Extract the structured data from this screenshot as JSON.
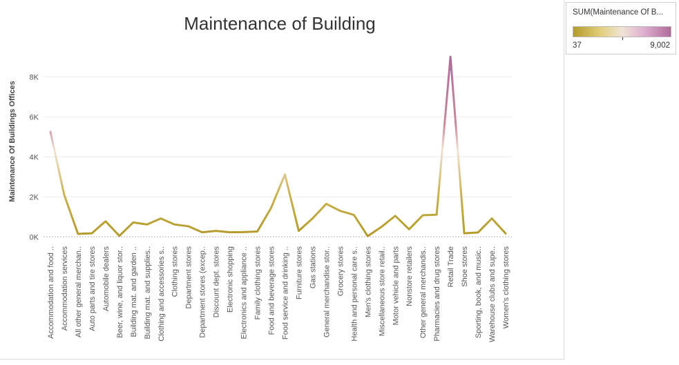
{
  "colors": {
    "low": "#b39a2a",
    "mid": "#f0e4d6",
    "high": "#b06a9b",
    "grid": "#ececec",
    "zero_line": "#b0b0b0",
    "text": "#555555"
  },
  "legend": {
    "title": "SUM(Maintenance Of B...",
    "min_label": "37",
    "max_label": "9,002"
  },
  "chart_data": {
    "type": "line",
    "title": "Maintenance of Building",
    "xlabel": "",
    "ylabel": "Maintenance Of Buildings Offices",
    "ylim": [
      -300,
      9700
    ],
    "yticks": [
      0,
      2000,
      4000,
      6000,
      8000
    ],
    "ytick_labels": [
      "0K",
      "2K",
      "4K",
      "6K",
      "8K"
    ],
    "color_range": [
      37,
      9002
    ],
    "categories": [
      "Accommodation and food ..",
      "Accommodation services",
      "All other general merchan..",
      "Auto parts and tire stores",
      "Automobile dealers",
      "Beer, wine, and liquor stor..",
      "Building mat. and garden ..",
      "Building mat. and supplies..",
      "Clothing and accessories s..",
      "Clothing stores",
      "Department stores",
      "Department stores (excep..",
      "Discount dept. stores",
      "Electronic shopping",
      "Electronics and appliance ..",
      "Family clothing stores",
      "Food and beverage stores",
      "Food service and drinking ..",
      "Furniture stores",
      "Gas stations",
      "General merchandise stor..",
      "Grocery stores",
      "Health and personal care s..",
      "Men's clothing stores",
      "Miscellaneous store retail..",
      "Motor vehicle and parts",
      "Nonstore retailers",
      "Other general merchandis..",
      "Pharmacies and drug stores",
      "Retail Trade",
      "Shoe stores",
      "Sporting, book, and music..",
      "Warehouse clubs and supe..",
      "Women's clothing stores"
    ],
    "values": [
      5250,
      2100,
      150,
      180,
      780,
      50,
      720,
      620,
      920,
      620,
      530,
      230,
      300,
      230,
      240,
      270,
      1450,
      3120,
      300,
      920,
      1650,
      1300,
      1100,
      37,
      500,
      1050,
      380,
      1080,
      1110,
      9002,
      180,
      220,
      920,
      170
    ]
  }
}
